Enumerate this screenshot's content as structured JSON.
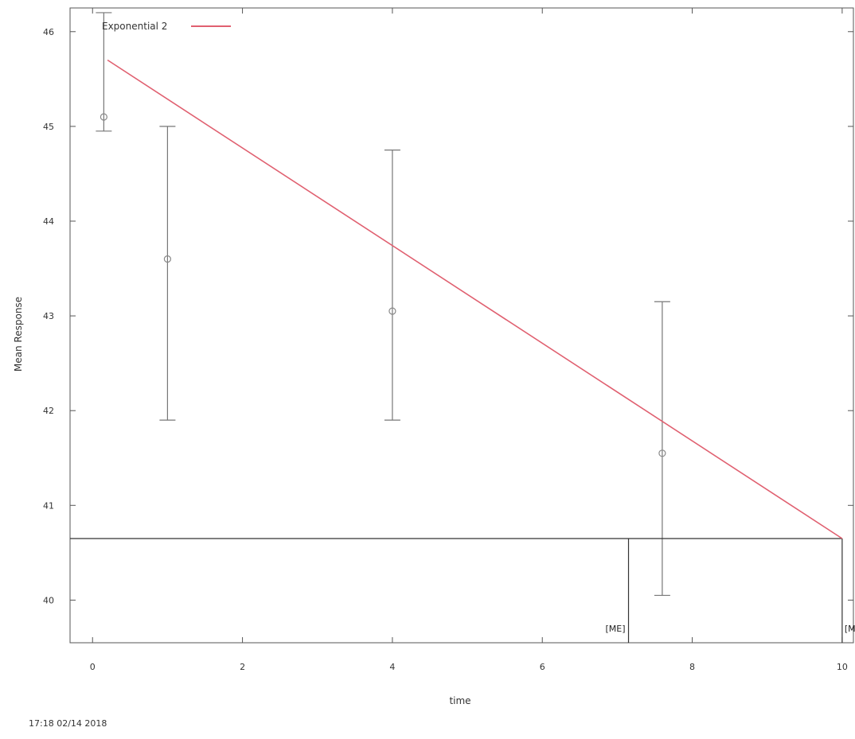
{
  "chart_data": {
    "type": "scatter",
    "title": "",
    "xlabel": "time",
    "ylabel": "Mean Response",
    "xlim": [
      -0.3,
      10.15
    ],
    "ylim": [
      39.55,
      46.25
    ],
    "x_ticks": [
      0,
      2,
      4,
      6,
      8,
      10
    ],
    "y_ticks": [
      40,
      41,
      42,
      43,
      44,
      45,
      46
    ],
    "grid": false,
    "legend_position": "top-left",
    "series": [
      {
        "name": "Exponential 2",
        "kind": "fit-line",
        "color": "#e06070",
        "x": [
          0.2,
          10
        ],
        "y": [
          45.7,
          40.65
        ]
      },
      {
        "kind": "points-with-error-bars",
        "color": "#888888",
        "x": [
          0.15,
          1,
          4,
          7.6
        ],
        "y": [
          45.1,
          43.6,
          43.05,
          41.55
        ],
        "y_err_low": [
          44.95,
          41.9,
          41.9,
          40.05
        ],
        "y_err_high": [
          46.2,
          45.0,
          44.75,
          43.15
        ]
      }
    ],
    "reference_lines": {
      "y": 40.65,
      "x_left": 7.15,
      "x_right": 10,
      "label_left": "[ME]",
      "label_right": "[MD]"
    }
  },
  "footer": {
    "timestamp": "17:18 02/14 2018"
  }
}
